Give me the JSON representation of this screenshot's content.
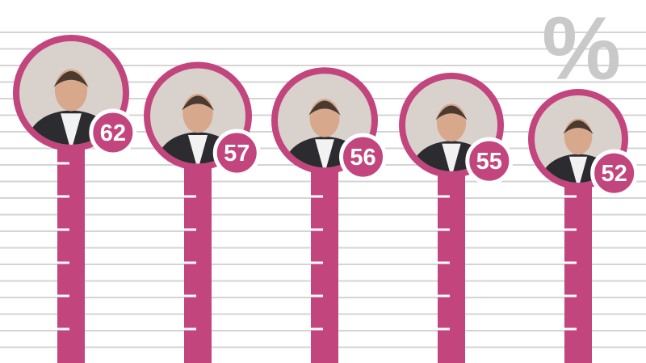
{
  "chart_data": {
    "type": "thermometer",
    "unit_label": "%",
    "values": [
      62,
      57,
      56,
      55,
      52
    ],
    "color": "#c2457d"
  }
}
